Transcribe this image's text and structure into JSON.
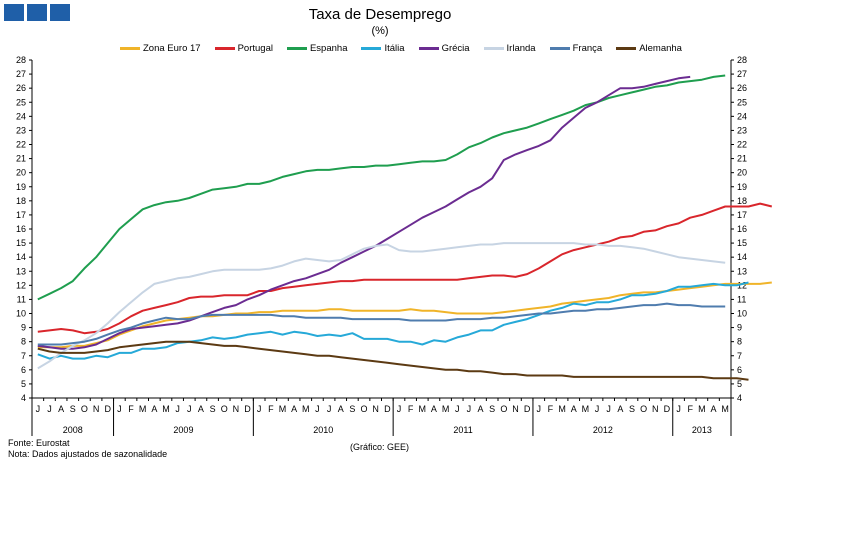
{
  "header": {
    "logo_icon": "three-blue-squares-logo-icon"
  },
  "chart_data": {
    "type": "line",
    "title": "Taxa de Desemprego",
    "subtitle": "(%)",
    "ylim": [
      4,
      28
    ],
    "yticks": [
      4,
      5,
      6,
      7,
      8,
      9,
      10,
      11,
      12,
      13,
      14,
      15,
      16,
      17,
      18,
      19,
      20,
      21,
      22,
      23,
      24,
      25,
      26,
      27,
      28
    ],
    "grid": false,
    "legend_position": "top",
    "month_labels": [
      "J",
      "J",
      "A",
      "S",
      "O",
      "N",
      "D",
      "J",
      "F",
      "M",
      "A",
      "M",
      "J",
      "J",
      "A",
      "S",
      "O",
      "N",
      "D",
      "J",
      "F",
      "M",
      "A",
      "M",
      "J",
      "J",
      "A",
      "S",
      "O",
      "N",
      "D",
      "J",
      "F",
      "M",
      "A",
      "M",
      "J",
      "J",
      "A",
      "S",
      "O",
      "N",
      "D",
      "J",
      "F",
      "M",
      "A",
      "M",
      "J",
      "J",
      "A",
      "S",
      "O",
      "N",
      "D",
      "J",
      "F",
      "M",
      "A",
      "M"
    ],
    "years": [
      {
        "label": "2008",
        "months": 7
      },
      {
        "label": "2009",
        "months": 12
      },
      {
        "label": "2010",
        "months": 12
      },
      {
        "label": "2011",
        "months": 12
      },
      {
        "label": "2012",
        "months": 12
      },
      {
        "label": "2013",
        "months": 5
      }
    ],
    "series": [
      {
        "name": "Zona Euro 17",
        "color": "#f0b429",
        "values": [
          7.6,
          7.6,
          7.6,
          7.7,
          7.7,
          7.9,
          8.1,
          8.5,
          8.8,
          9.1,
          9.3,
          9.5,
          9.6,
          9.7,
          9.8,
          9.8,
          9.9,
          10.0,
          10.0,
          10.1,
          10.1,
          10.2,
          10.2,
          10.2,
          10.2,
          10.3,
          10.3,
          10.2,
          10.2,
          10.2,
          10.2,
          10.2,
          10.3,
          10.2,
          10.2,
          10.1,
          10.0,
          10.0,
          10.0,
          10.0,
          10.1,
          10.2,
          10.3,
          10.4,
          10.5,
          10.7,
          10.8,
          10.9,
          11.0,
          11.1,
          11.3,
          11.4,
          11.5,
          11.5,
          11.6,
          11.7,
          11.8,
          11.9,
          12.0,
          12.1,
          12.1,
          12.1,
          12.1,
          12.2
        ]
      },
      {
        "name": "Portugal",
        "color": "#d9262c",
        "values": [
          8.7,
          8.8,
          8.9,
          8.8,
          8.6,
          8.7,
          8.9,
          9.3,
          9.8,
          10.2,
          10.4,
          10.6,
          10.8,
          11.1,
          11.2,
          11.2,
          11.3,
          11.3,
          11.3,
          11.6,
          11.6,
          11.8,
          11.9,
          12.0,
          12.1,
          12.2,
          12.3,
          12.3,
          12.4,
          12.4,
          12.4,
          12.4,
          12.4,
          12.4,
          12.4,
          12.4,
          12.4,
          12.5,
          12.6,
          12.7,
          12.7,
          12.6,
          12.8,
          13.2,
          13.7,
          14.2,
          14.5,
          14.7,
          14.9,
          15.1,
          15.4,
          15.5,
          15.8,
          15.9,
          16.2,
          16.4,
          16.8,
          17.0,
          17.3,
          17.6,
          17.6,
          17.6,
          17.8,
          17.6
        ]
      },
      {
        "name": "Espanha",
        "color": "#1f9e4f",
        "values": [
          11.0,
          11.4,
          11.8,
          12.3,
          13.2,
          14.0,
          15.0,
          16.0,
          16.7,
          17.4,
          17.7,
          17.9,
          18.0,
          18.2,
          18.5,
          18.8,
          18.9,
          19.0,
          19.2,
          19.2,
          19.4,
          19.7,
          19.9,
          20.1,
          20.2,
          20.2,
          20.3,
          20.4,
          20.4,
          20.5,
          20.5,
          20.6,
          20.7,
          20.8,
          20.8,
          20.9,
          21.3,
          21.8,
          22.1,
          22.5,
          22.8,
          23.0,
          23.2,
          23.5,
          23.8,
          24.1,
          24.4,
          24.8,
          25.0,
          25.3,
          25.5,
          25.7,
          25.9,
          26.1,
          26.2,
          26.4,
          26.5,
          26.6,
          26.8,
          26.9
        ]
      },
      {
        "name": "Itália",
        "color": "#26a9d8",
        "values": [
          7.1,
          6.8,
          7.0,
          6.8,
          6.8,
          7.0,
          6.9,
          7.2,
          7.2,
          7.5,
          7.5,
          7.6,
          7.9,
          8.0,
          8.1,
          8.3,
          8.2,
          8.3,
          8.5,
          8.6,
          8.7,
          8.5,
          8.7,
          8.6,
          8.4,
          8.5,
          8.4,
          8.6,
          8.2,
          8.2,
          8.2,
          8.0,
          8.0,
          7.8,
          8.1,
          8.0,
          8.3,
          8.5,
          8.8,
          8.8,
          9.2,
          9.4,
          9.6,
          9.9,
          10.2,
          10.4,
          10.7,
          10.6,
          10.8,
          10.8,
          11.0,
          11.3,
          11.3,
          11.4,
          11.6,
          11.9,
          11.9,
          12.0,
          12.1,
          12.0,
          12.0,
          12.2
        ]
      },
      {
        "name": "Grécia",
        "color": "#6b2c91",
        "values": [
          7.7,
          7.6,
          7.5,
          7.5,
          7.6,
          7.8,
          8.2,
          8.6,
          8.9,
          9.0,
          9.1,
          9.2,
          9.3,
          9.5,
          9.8,
          10.1,
          10.4,
          10.6,
          11.0,
          11.3,
          11.7,
          12.0,
          12.3,
          12.5,
          12.8,
          13.1,
          13.6,
          14.0,
          14.4,
          14.8,
          15.3,
          15.8,
          16.3,
          16.8,
          17.2,
          17.6,
          18.1,
          18.6,
          19.0,
          19.6,
          20.9,
          21.3,
          21.6,
          21.9,
          22.3,
          23.2,
          23.9,
          24.6,
          25.0,
          25.5,
          26.0,
          26.0,
          26.1,
          26.3,
          26.5,
          26.7,
          26.8
        ]
      },
      {
        "name": "Irlanda",
        "color": "#c7d4e3",
        "values": [
          6.1,
          6.6,
          7.2,
          7.7,
          8.1,
          8.6,
          9.3,
          10.1,
          10.8,
          11.5,
          12.1,
          12.3,
          12.5,
          12.6,
          12.8,
          13.0,
          13.1,
          13.1,
          13.1,
          13.1,
          13.2,
          13.4,
          13.7,
          13.9,
          13.8,
          13.7,
          13.8,
          14.2,
          14.6,
          14.8,
          14.9,
          14.5,
          14.4,
          14.4,
          14.5,
          14.6,
          14.7,
          14.8,
          14.9,
          14.9,
          15.0,
          15.0,
          15.0,
          15.0,
          15.0,
          15.0,
          15.0,
          14.9,
          14.9,
          14.8,
          14.8,
          14.7,
          14.6,
          14.4,
          14.2,
          14.0,
          13.9,
          13.8,
          13.7,
          13.6
        ]
      },
      {
        "name": "França",
        "color": "#4f7cae",
        "values": [
          7.8,
          7.8,
          7.8,
          7.9,
          8.0,
          8.2,
          8.5,
          8.8,
          9.0,
          9.3,
          9.5,
          9.7,
          9.6,
          9.6,
          9.8,
          9.9,
          9.9,
          9.9,
          9.9,
          9.9,
          9.9,
          9.8,
          9.8,
          9.7,
          9.7,
          9.7,
          9.7,
          9.6,
          9.6,
          9.6,
          9.6,
          9.6,
          9.5,
          9.5,
          9.5,
          9.5,
          9.6,
          9.6,
          9.6,
          9.7,
          9.7,
          9.8,
          9.9,
          10.0,
          10.0,
          10.1,
          10.2,
          10.2,
          10.3,
          10.3,
          10.4,
          10.5,
          10.6,
          10.6,
          10.7,
          10.6,
          10.6,
          10.5,
          10.5,
          10.5
        ]
      },
      {
        "name": "Alemanha",
        "color": "#5c3a13",
        "values": [
          7.5,
          7.3,
          7.2,
          7.2,
          7.2,
          7.3,
          7.4,
          7.6,
          7.7,
          7.8,
          7.9,
          8.0,
          8.0,
          8.0,
          7.9,
          7.8,
          7.7,
          7.7,
          7.6,
          7.5,
          7.4,
          7.3,
          7.2,
          7.1,
          7.0,
          7.0,
          6.9,
          6.8,
          6.7,
          6.6,
          6.5,
          6.4,
          6.3,
          6.2,
          6.1,
          6.0,
          6.0,
          5.9,
          5.9,
          5.8,
          5.7,
          5.7,
          5.6,
          5.6,
          5.6,
          5.6,
          5.5,
          5.5,
          5.5,
          5.5,
          5.5,
          5.5,
          5.5,
          5.5,
          5.5,
          5.5,
          5.5,
          5.5,
          5.4,
          5.4,
          5.4,
          5.3
        ]
      }
    ]
  },
  "footer": {
    "source": "Fonte: Eurostat",
    "note": "Nota: Dados ajustados de sazonalidade",
    "credit": "(Gráfico: GEE)"
  }
}
